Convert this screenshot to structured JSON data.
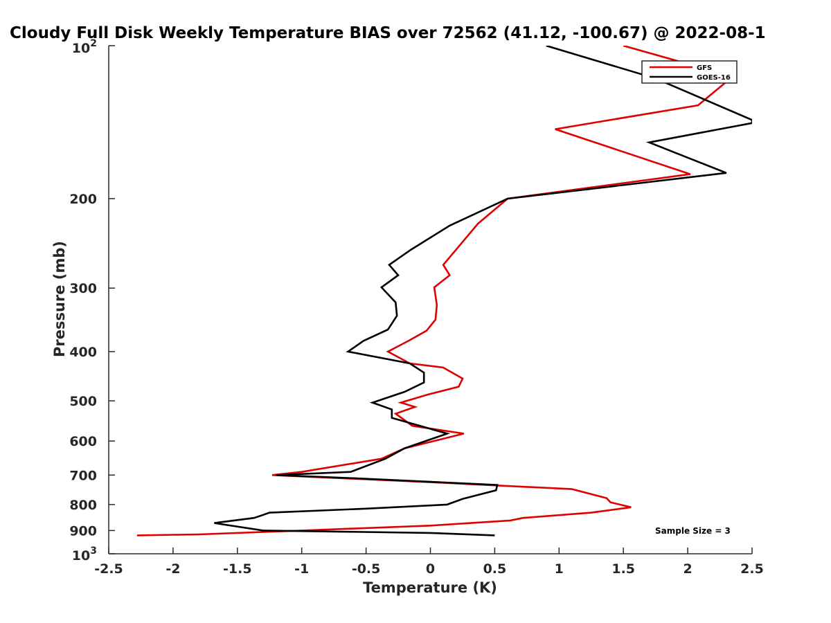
{
  "chart_data": {
    "type": "line",
    "title": "Cloudy Full Disk Weekly Temperature BIAS over 72562 (41.12, -100.67) @ 2022-08-1",
    "xlabel": "Temperature (K)",
    "ylabel": "Pressure (mb)",
    "xlim": [
      -2.5,
      2.5
    ],
    "ylim": [
      100,
      1000
    ],
    "y_scale": "log",
    "y_reversed": true,
    "x_ticks": [
      -2.5,
      -2,
      -1.5,
      -1,
      -0.5,
      0,
      0.5,
      1,
      1.5,
      2,
      2.5
    ],
    "x_tick_labels": [
      "-2.5",
      "-2",
      "-1.5",
      "-1",
      "-0.5",
      "0",
      "0.5",
      "1",
      "1.5",
      "2",
      "2.5"
    ],
    "y_ticks": [
      200,
      300,
      400,
      500,
      600,
      700,
      800,
      900
    ],
    "y_tick_labels": [
      "200",
      "300",
      "400",
      "500",
      "600",
      "700",
      "800",
      "900"
    ],
    "y_end_labels": {
      "top_base": "10",
      "top_exp": "2",
      "bottom_base": "10",
      "bottom_exp": "3"
    },
    "legend_position": "top-right",
    "annotation": "Sample Size = 3",
    "series": [
      {
        "name": "GFS",
        "color": "#e00000",
        "points": [
          [
            1.5,
            100
          ],
          [
            2.35,
            115
          ],
          [
            2.08,
            131
          ],
          [
            0.97,
            146
          ],
          [
            2.02,
            179
          ],
          [
            0.6,
            200
          ],
          [
            0.37,
            224
          ],
          [
            0.2,
            252
          ],
          [
            0.1,
            270
          ],
          [
            0.15,
            283
          ],
          [
            0.03,
            299
          ],
          [
            0.05,
            324
          ],
          [
            0.04,
            346
          ],
          [
            -0.03,
            364
          ],
          [
            -0.17,
            381
          ],
          [
            -0.33,
            400
          ],
          [
            -0.16,
            422
          ],
          [
            0.1,
            430
          ],
          [
            0.25,
            452
          ],
          [
            0.22,
            469
          ],
          [
            -0.02,
            486
          ],
          [
            -0.23,
            504
          ],
          [
            -0.12,
            514
          ],
          [
            -0.27,
            530
          ],
          [
            -0.14,
            560
          ],
          [
            0.26,
            580
          ],
          [
            -0.2,
            620
          ],
          [
            -0.38,
            650
          ],
          [
            -1.0,
            690
          ],
          [
            -1.23,
            700
          ],
          [
            0.0,
            723
          ],
          [
            1.1,
            746
          ],
          [
            1.37,
            777
          ],
          [
            1.4,
            792
          ],
          [
            1.56,
            810
          ],
          [
            1.25,
            830
          ],
          [
            0.72,
            850
          ],
          [
            0.62,
            860
          ],
          [
            0.0,
            880
          ],
          [
            -1.0,
            900
          ],
          [
            -1.8,
            916
          ],
          [
            -2.28,
            920
          ]
        ]
      },
      {
        "name": "GOES-16",
        "color": "#000000",
        "points": [
          [
            0.9,
            100
          ],
          [
            1.75,
            116
          ],
          [
            2.5,
            140
          ],
          [
            2.5,
            142
          ],
          [
            1.7,
            155
          ],
          [
            2.3,
            178
          ],
          [
            0.6,
            200
          ],
          [
            0.15,
            226
          ],
          [
            -0.15,
            252
          ],
          [
            -0.32,
            270
          ],
          [
            -0.25,
            283
          ],
          [
            -0.38,
            299
          ],
          [
            -0.27,
            320
          ],
          [
            -0.26,
            340
          ],
          [
            -0.33,
            362
          ],
          [
            -0.52,
            381
          ],
          [
            -0.64,
            400
          ],
          [
            -0.16,
            422
          ],
          [
            -0.05,
            440
          ],
          [
            -0.05,
            460
          ],
          [
            -0.2,
            480
          ],
          [
            -0.45,
            504
          ],
          [
            -0.3,
            520
          ],
          [
            -0.3,
            540
          ],
          [
            0.13,
            580
          ],
          [
            -0.2,
            620
          ],
          [
            -0.35,
            650
          ],
          [
            -0.62,
            690
          ],
          [
            -1.2,
            700
          ],
          [
            -0.6,
            710
          ],
          [
            0.52,
            732
          ],
          [
            0.51,
            750
          ],
          [
            0.25,
            780
          ],
          [
            0.13,
            800
          ],
          [
            -0.5,
            815
          ],
          [
            -1.25,
            830
          ],
          [
            -1.37,
            850
          ],
          [
            -1.68,
            870
          ],
          [
            -1.3,
            900
          ],
          [
            0.0,
            910
          ],
          [
            0.5,
            920
          ]
        ]
      }
    ]
  }
}
